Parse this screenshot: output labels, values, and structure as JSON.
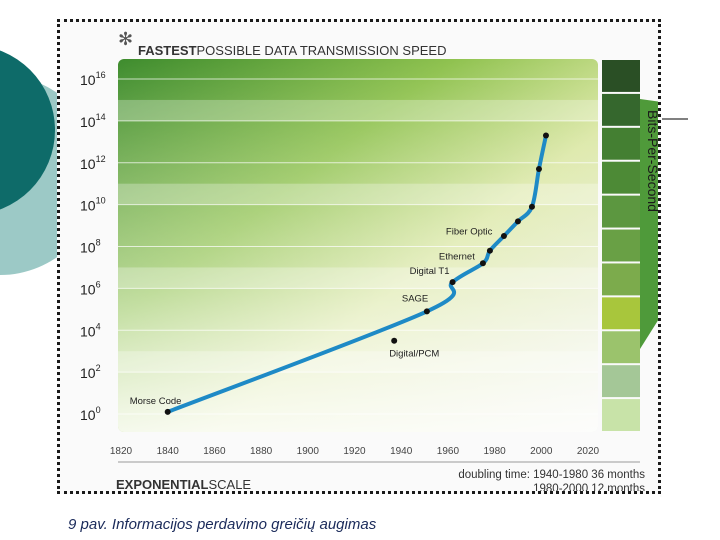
{
  "slide": {
    "caption": "9 pav. Informacijos perdavimo greičių augimas"
  },
  "chart_data": {
    "type": "line",
    "title_bold": "FASTEST",
    "title_rest": "POSSIBLE DATA TRANSMISSION SPEED",
    "footer_bold": "EXPONENTIAL",
    "footer_rest": "SCALE",
    "doubling_line1": "doubling time: 1940-1980 36 months",
    "doubling_line2": "1980-2000 12 months",
    "ylabel": "Bits-Per-Second",
    "y_scale": "log",
    "ylim_exponent": [
      0,
      17
    ],
    "xlim": [
      1820,
      2020
    ],
    "x_ticks": [
      1820,
      1840,
      1860,
      1880,
      1900,
      1920,
      1940,
      1960,
      1980,
      2000,
      2020
    ],
    "x_tick_labels": [
      "1820",
      "1840",
      "1860",
      "1880",
      "1900",
      "1920",
      "1940",
      "1960",
      "1980",
      "2000",
      "2020"
    ],
    "y_tick_exponents": [
      0,
      2,
      4,
      6,
      8,
      10,
      12,
      14,
      16
    ],
    "y_tick_base": "10",
    "grid": "horizontal bands",
    "curve_color": "#1e8ac6",
    "points": [
      {
        "label": "Morse Code",
        "year": 1840,
        "exp": 0.1
      },
      {
        "label": "Digital/PCM",
        "year": 1937,
        "exp": 3.5
      },
      {
        "label": "SAGE",
        "year": 1951,
        "exp": 4.9
      },
      {
        "label": "Digital T1",
        "year": 1962,
        "exp": 6.3
      },
      {
        "label": "Ethernet",
        "year": 1975,
        "exp": 7.2
      },
      {
        "label": "Fiber Optic",
        "year": 1978,
        "exp": 7.8
      },
      {
        "label": "",
        "year": 1984,
        "exp": 8.5
      },
      {
        "label": "",
        "year": 1990,
        "exp": 9.2
      },
      {
        "label": "",
        "year": 1996,
        "exp": 9.9
      },
      {
        "label": "",
        "year": 1999,
        "exp": 11.7
      },
      {
        "label": "",
        "year": 2002,
        "exp": 13.3
      }
    ],
    "band_colors": [
      "#c8e3a8",
      "#a4c797",
      "#9bc36c",
      "#a8c63c",
      "#7cab4c",
      "#69a045",
      "#5c9740",
      "#4d8a36",
      "#447f32",
      "#35672d",
      "#2a4f25"
    ]
  }
}
